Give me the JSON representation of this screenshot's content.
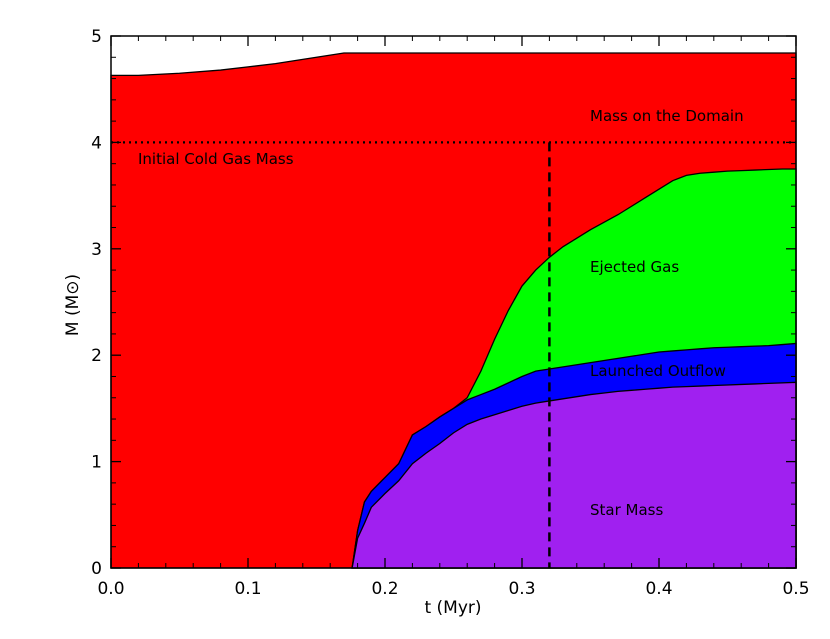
{
  "chart_data": {
    "type": "area",
    "title": "",
    "xlabel": "t (Myr)",
    "ylabel": "M (M⊙)",
    "xlim": [
      0.0,
      0.5
    ],
    "ylim": [
      0,
      5
    ],
    "x_ticks": [
      0.0,
      0.1,
      0.2,
      0.3,
      0.4,
      0.5
    ],
    "x_tick_labels": [
      "0.0",
      "0.1",
      "0.2",
      "0.3",
      "0.4",
      "0.5"
    ],
    "y_ticks": [
      0,
      1,
      2,
      3,
      4,
      5
    ],
    "y_tick_labels": [
      "0",
      "1",
      "2",
      "3",
      "4",
      "5"
    ],
    "grid": false,
    "reference_lines": {
      "initial_cold_gas_mass": {
        "orientation": "horizontal",
        "style": "dotted",
        "value": 4.0,
        "label": "Initial Cold Gas Mass"
      },
      "marker_time": {
        "orientation": "vertical",
        "style": "dashed",
        "value": 0.32
      }
    },
    "series": [
      {
        "name": "Mass on the Domain",
        "color": "#ff0000",
        "x": [
          0.0,
          0.02,
          0.05,
          0.08,
          0.1,
          0.12,
          0.14,
          0.16,
          0.17,
          0.18,
          0.25,
          0.3,
          0.35,
          0.4,
          0.45,
          0.5
        ],
        "values": [
          4.63,
          4.63,
          4.65,
          4.68,
          4.71,
          4.74,
          4.78,
          4.82,
          4.84,
          4.84,
          4.84,
          4.84,
          4.84,
          4.84,
          4.84,
          4.84
        ]
      },
      {
        "name": "Ejected Gas",
        "color": "#00ff00",
        "x": [
          0.176,
          0.18,
          0.185,
          0.19,
          0.2,
          0.21,
          0.22,
          0.23,
          0.24,
          0.25,
          0.26,
          0.27,
          0.28,
          0.29,
          0.3,
          0.31,
          0.32,
          0.33,
          0.34,
          0.35,
          0.36,
          0.37,
          0.38,
          0.39,
          0.4,
          0.41,
          0.42,
          0.43,
          0.44,
          0.45,
          0.46,
          0.47,
          0.48,
          0.49,
          0.5
        ],
        "values": [
          0.0,
          0.35,
          0.62,
          0.72,
          0.85,
          0.98,
          1.25,
          1.33,
          1.42,
          1.5,
          1.6,
          1.85,
          2.15,
          2.42,
          2.65,
          2.8,
          2.92,
          3.02,
          3.1,
          3.18,
          3.25,
          3.32,
          3.4,
          3.48,
          3.56,
          3.64,
          3.69,
          3.71,
          3.72,
          3.73,
          3.735,
          3.74,
          3.745,
          3.75,
          3.75
        ]
      },
      {
        "name": "Launched Outflow",
        "color": "#0000ff",
        "x": [
          0.176,
          0.18,
          0.185,
          0.19,
          0.2,
          0.21,
          0.22,
          0.23,
          0.24,
          0.25,
          0.26,
          0.27,
          0.28,
          0.29,
          0.3,
          0.31,
          0.32,
          0.33,
          0.34,
          0.35,
          0.36,
          0.37,
          0.38,
          0.39,
          0.4,
          0.41,
          0.42,
          0.43,
          0.44,
          0.45,
          0.46,
          0.47,
          0.48,
          0.49,
          0.5
        ],
        "values": [
          0.0,
          0.35,
          0.62,
          0.72,
          0.85,
          0.98,
          1.25,
          1.33,
          1.42,
          1.5,
          1.58,
          1.63,
          1.68,
          1.74,
          1.8,
          1.85,
          1.87,
          1.89,
          1.91,
          1.93,
          1.95,
          1.97,
          1.99,
          2.01,
          2.03,
          2.04,
          2.05,
          2.06,
          2.07,
          2.075,
          2.08,
          2.085,
          2.09,
          2.1,
          2.11
        ]
      },
      {
        "name": "Star Mass",
        "color": "#a020f0",
        "x": [
          0.176,
          0.18,
          0.185,
          0.19,
          0.2,
          0.21,
          0.22,
          0.23,
          0.24,
          0.25,
          0.26,
          0.27,
          0.28,
          0.29,
          0.3,
          0.31,
          0.32,
          0.33,
          0.34,
          0.35,
          0.36,
          0.37,
          0.38,
          0.39,
          0.4,
          0.41,
          0.42,
          0.43,
          0.44,
          0.45,
          0.46,
          0.47,
          0.48,
          0.49,
          0.5
        ],
        "values": [
          0.0,
          0.28,
          0.42,
          0.57,
          0.7,
          0.82,
          0.98,
          1.08,
          1.17,
          1.27,
          1.35,
          1.4,
          1.44,
          1.48,
          1.52,
          1.55,
          1.57,
          1.59,
          1.61,
          1.63,
          1.645,
          1.66,
          1.67,
          1.68,
          1.69,
          1.7,
          1.705,
          1.71,
          1.715,
          1.72,
          1.725,
          1.73,
          1.735,
          1.74,
          1.745
        ]
      }
    ],
    "labels": {
      "mass_on_domain": "Mass on the Domain",
      "initial_cold_gas": "Initial Cold Gas Mass",
      "ejected_gas": "Ejected Gas",
      "launched_outflow": "Launched Outflow",
      "star_mass": "Star Mass"
    }
  }
}
